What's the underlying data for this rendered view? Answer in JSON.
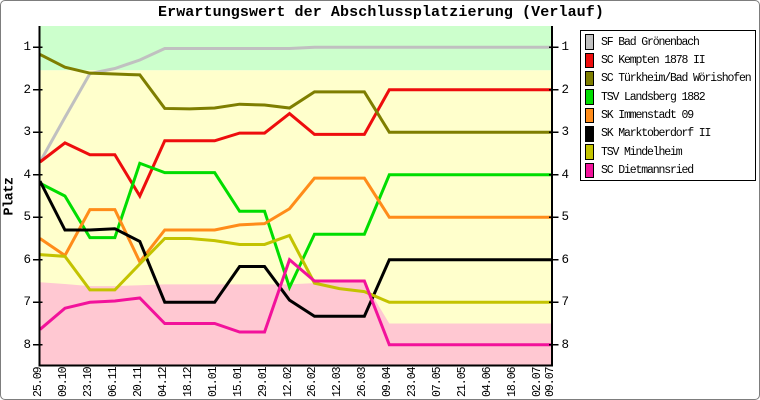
{
  "title": "Erwartungswert der Abschlussplatzierung (Verlauf)",
  "y_axis_label": "Platz",
  "chart_data": {
    "type": "line",
    "title": "Erwartungswert der Abschlussplatzierung (Verlauf)",
    "xlabel": "",
    "ylabel": "Platz",
    "x_tick_labels": [
      "25.09",
      "09.10",
      "23.10",
      "06.11",
      "20.11",
      "04.12",
      "18.12",
      "01.01",
      "15.01",
      "29.01",
      "12.02",
      "26.02",
      "12.03",
      "26.03",
      "09.04",
      "23.04",
      "07.05",
      "21.05",
      "04.06",
      "18.06",
      "02.07",
      "09.07"
    ],
    "x_days": [
      0,
      14,
      28,
      42,
      56,
      70,
      84,
      98,
      112,
      126,
      140,
      154,
      168,
      182,
      196,
      210,
      224,
      238,
      252,
      266,
      280,
      287
    ],
    "y_ticks": [
      "1",
      "2",
      "3",
      "4",
      "5",
      "6",
      "7",
      "8"
    ],
    "ylim": [
      0.5,
      8.5
    ],
    "y_inverted": true,
    "grid": false,
    "legend_position": "right",
    "bands": [
      {
        "name": "promotion-zone",
        "color": "#ccffcc",
        "from": 0.5,
        "to": 1.54
      },
      {
        "name": "midfield-zone",
        "color": "#ffffcc",
        "from": 1.54,
        "to": "relegation_boundary"
      },
      {
        "name": "relegation-zone",
        "color": "#ffc8d2",
        "boundary_values": [
          6.53,
          6.57,
          6.62,
          6.62,
          6.6,
          6.58,
          6.58,
          6.58,
          6.58,
          6.58,
          6.58,
          6.55,
          6.53,
          6.53,
          7.5,
          7.5,
          7.5,
          7.5,
          7.5,
          7.5,
          7.5,
          7.5
        ],
        "to": 8.5
      }
    ],
    "series": [
      {
        "name": "SF Bad Grönenbach",
        "color": "#c0c0c0",
        "values": [
          3.7,
          2.65,
          1.62,
          1.5,
          1.3,
          1.03,
          1.03,
          1.03,
          1.03,
          1.03,
          1.03,
          1.0,
          1.0,
          1.0,
          1.0,
          1.0,
          1.0,
          1.0,
          1.0,
          1.0,
          1.0,
          1.0
        ]
      },
      {
        "name": "SC Kempten 1878 II",
        "color": "#ee0d0d",
        "values": [
          3.7,
          3.25,
          3.53,
          3.53,
          4.5,
          3.2,
          3.2,
          3.2,
          3.02,
          3.02,
          2.56,
          3.05,
          3.05,
          3.05,
          2.0,
          2.0,
          2.0,
          2.0,
          2.0,
          2.0,
          2.0,
          2.0
        ]
      },
      {
        "name": "SC Türkheim/Bad Wörishofen",
        "color": "#7e7e00",
        "values": [
          1.17,
          1.47,
          1.61,
          1.63,
          1.65,
          2.44,
          2.45,
          2.43,
          2.34,
          2.36,
          2.43,
          2.05,
          2.05,
          2.05,
          3.0,
          3.0,
          3.0,
          3.0,
          3.0,
          3.0,
          3.0,
          3.0
        ]
      },
      {
        "name": "TSV Landsberg 1882",
        "color": "#00dd00",
        "values": [
          4.2,
          4.5,
          5.48,
          5.48,
          3.73,
          3.95,
          3.95,
          3.95,
          4.86,
          4.86,
          6.65,
          5.4,
          5.4,
          5.4,
          4.0,
          4.0,
          4.0,
          4.0,
          4.0,
          4.0,
          4.0,
          4.0
        ]
      },
      {
        "name": "SK Immenstadt 09",
        "color": "#ff8c1a",
        "values": [
          5.5,
          5.9,
          4.82,
          4.82,
          6.05,
          5.3,
          5.3,
          5.3,
          5.18,
          5.15,
          4.8,
          4.08,
          4.08,
          4.08,
          5.0,
          5.0,
          5.0,
          5.0,
          5.0,
          5.0,
          5.0,
          5.0
        ]
      },
      {
        "name": "SK Marktoberdorf II",
        "color": "#000000",
        "values": [
          4.15,
          5.3,
          5.3,
          5.27,
          5.57,
          7.0,
          7.0,
          7.0,
          6.16,
          6.16,
          6.95,
          7.33,
          7.33,
          7.33,
          6.0,
          6.0,
          6.0,
          6.0,
          6.0,
          6.0,
          6.0,
          6.0
        ]
      },
      {
        "name": "TSV Mindelheim",
        "color": "#c3c300",
        "values": [
          5.88,
          5.92,
          6.71,
          6.71,
          6.1,
          5.5,
          5.5,
          5.55,
          5.64,
          5.64,
          5.43,
          6.55,
          6.68,
          6.75,
          7.0,
          7.0,
          7.0,
          7.0,
          7.0,
          7.0,
          7.0,
          7.0
        ]
      },
      {
        "name": "SC Dietmannsried",
        "color": "#f2129b",
        "values": [
          7.64,
          7.14,
          7.0,
          6.97,
          6.9,
          7.5,
          7.5,
          7.5,
          7.7,
          7.7,
          6.0,
          6.5,
          6.5,
          6.5,
          8.0,
          8.0,
          8.0,
          8.0,
          8.0,
          8.0,
          8.0,
          8.0
        ]
      }
    ]
  }
}
